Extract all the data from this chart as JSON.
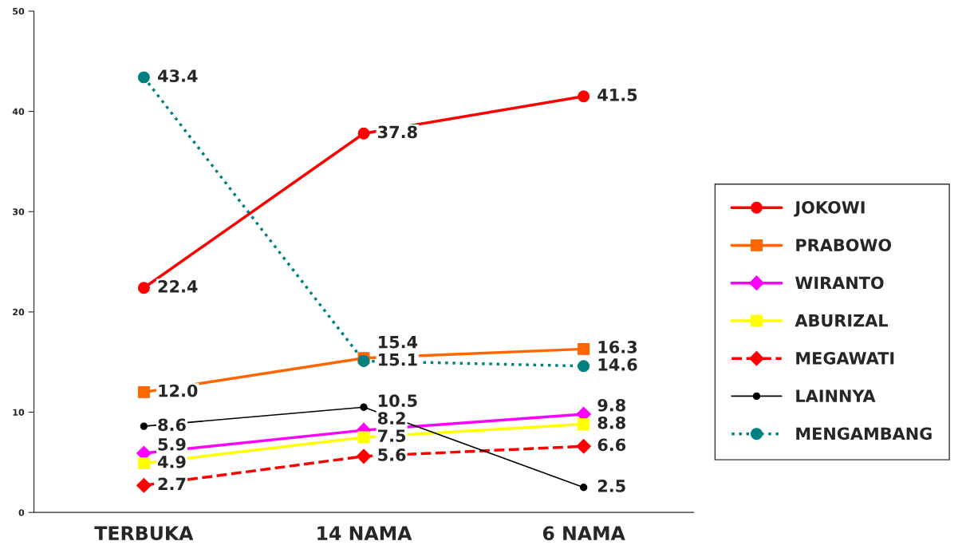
{
  "chart_data": {
    "type": "line",
    "categories": [
      "TERBUKA",
      "14 NAMA",
      "6 NAMA"
    ],
    "ylim": [
      0,
      50
    ],
    "yticks": [
      0,
      10,
      20,
      30,
      40,
      50
    ],
    "grid": false,
    "legend": "right",
    "series": [
      {
        "name": "JOKOWI",
        "color": "#ff0000",
        "marker": "circle",
        "line_style": "solid",
        "values": [
          22.4,
          37.8,
          41.5
        ],
        "value_labels": [
          "22.4",
          "37.8",
          "41.5"
        ]
      },
      {
        "name": "PRABOWO",
        "color": "#ff6600",
        "marker": "square",
        "line_style": "solid",
        "values": [
          12.0,
          15.4,
          16.3
        ],
        "value_labels": [
          "12.0",
          "15.4",
          "16.3"
        ]
      },
      {
        "name": "WIRANTO",
        "color": "#ff00ff",
        "marker": "diamond",
        "line_style": "solid",
        "values": [
          5.9,
          8.2,
          9.8
        ],
        "value_labels": [
          "5.9",
          "8.2",
          "9.8"
        ]
      },
      {
        "name": "ABURIZAL",
        "color": "#ffff00",
        "marker": "square",
        "line_style": "solid",
        "values": [
          4.9,
          7.5,
          8.8
        ],
        "value_labels": [
          "4.9",
          "7.5",
          "8.8"
        ]
      },
      {
        "name": "MEGAWATI",
        "color": "#ff0000",
        "marker": "diamond",
        "line_style": "dashed",
        "values": [
          2.7,
          5.6,
          6.6
        ],
        "value_labels": [
          "2.7",
          "5.6",
          "6.6"
        ]
      },
      {
        "name": "LAINNYA",
        "color": "#000000",
        "marker": "circle",
        "line_style": "solid",
        "values": [
          8.6,
          10.5,
          2.5
        ],
        "value_labels": [
          "8.6",
          "10.5",
          "2.5"
        ]
      },
      {
        "name": "MENGAMBANG",
        "color": "#008080",
        "marker": "circle",
        "line_style": "dotted",
        "values": [
          43.4,
          15.1,
          14.6
        ],
        "value_labels": [
          "43.4",
          "15.1",
          "14.6"
        ]
      }
    ]
  }
}
